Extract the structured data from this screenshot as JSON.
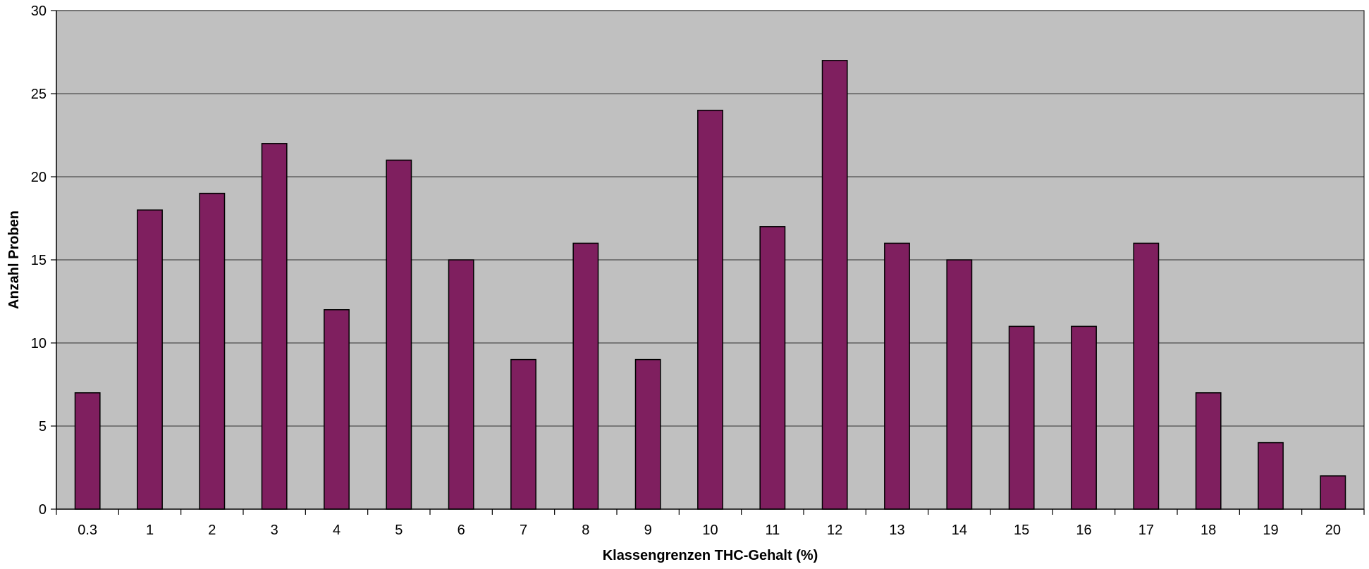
{
  "chart_data": {
    "type": "bar",
    "title": "",
    "xlabel": "Klassengrenzen THC-Gehalt (%)",
    "ylabel": "Anzahl Proben",
    "categories": [
      "0.3",
      "1",
      "2",
      "3",
      "4",
      "5",
      "6",
      "7",
      "8",
      "9",
      "10",
      "11",
      "12",
      "13",
      "14",
      "15",
      "16",
      "17",
      "18",
      "19",
      "20"
    ],
    "values": [
      7,
      18,
      19,
      22,
      12,
      21,
      15,
      9,
      16,
      9,
      24,
      17,
      27,
      16,
      15,
      11,
      11,
      16,
      7,
      4,
      2
    ],
    "ylim": [
      0,
      30
    ],
    "yticks": [
      0,
      5,
      10,
      15,
      20,
      25,
      30
    ],
    "grid": true,
    "colors": {
      "bar": "#7f1f5f",
      "plot_background": "#c0c0c0",
      "gridline": "#000000"
    }
  }
}
